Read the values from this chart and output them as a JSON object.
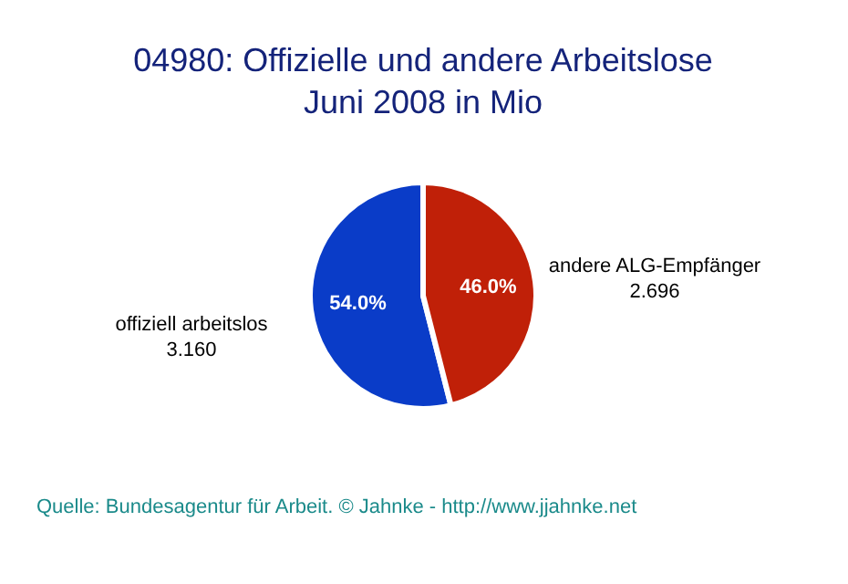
{
  "chart_data": {
    "type": "pie",
    "title": "04980: Offizielle und andere Arbeitslose",
    "subtitle": "Juni 2008 in Mio",
    "categories": [
      "offiziell arbeitslos",
      "andere ALG-Empfänger"
    ],
    "values": [
      3.16,
      2.696
    ],
    "value_labels": [
      "3.160",
      "2.696"
    ],
    "colors": [
      "#0a3cc8",
      "#c02008"
    ],
    "annotations": [
      "54.0%",
      "46.0%",
      "Quelle: Bundesagentur für Arbeit.  © Jahnke - http://www.jjahnke.net"
    ],
    "legend": null
  }
}
